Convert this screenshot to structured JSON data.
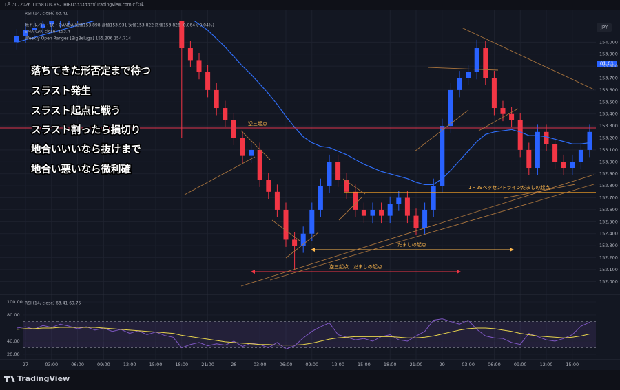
{
  "header": {
    "created": "1月 30, 2026 11:58 UTC+9、HIRO3333333がTradingView.comで作成",
    "rsi_top": "RSI (14, close)  63.41",
    "legend_symbol": "米ドル／円 · 10 · OANDA  始値153.898  高値153.931  安値153.822  終値153.826  -0.064 (-0.04%)",
    "legend_ema": "EMA (20, close)  153.4",
    "legend_wor": "Weekly Open Ranges [BigBeluga]  155.206  154.714",
    "currency": "JPY",
    "countdown": "01:01"
  },
  "overlay_text": [
    "落ちてきた形否定まで待つ",
    "スラスト発生",
    "スラスト起点に戦う",
    "スラスト割ったら損切り",
    "地合いいいなら抜けまで",
    "地合い悪いなら微利確"
  ],
  "annotations": [
    "逆三起点",
    "1・29ベッセントラインだましの起点",
    "だましの起点",
    "逆三起点　だましの起点"
  ],
  "footer": "TradingView",
  "chart_data": {
    "type": "candlestick",
    "ylim": [
      151.91,
      154.18
    ],
    "yticks": [
      {
        "value": 152.0,
        "label": "152.000"
      },
      {
        "value": 152.1,
        "label": "152.100"
      },
      {
        "value": 152.2,
        "label": "152.200"
      },
      {
        "value": 152.3,
        "label": "152.300"
      },
      {
        "value": 152.4,
        "label": "152.400"
      },
      {
        "value": 152.5,
        "label": "152.500"
      },
      {
        "value": 152.6,
        "label": "152.600"
      },
      {
        "value": 152.7,
        "label": "152.700"
      },
      {
        "value": 152.8,
        "label": "152.800"
      },
      {
        "value": 152.9,
        "label": "152.900"
      },
      {
        "value": 153.0,
        "label": "153.000"
      },
      {
        "value": 153.1,
        "label": "153.100"
      },
      {
        "value": 153.2,
        "label": "153.200"
      },
      {
        "value": 153.3,
        "label": "153.300"
      },
      {
        "value": 153.4,
        "label": "153.400"
      },
      {
        "value": 153.5,
        "label": "153.500"
      },
      {
        "value": 153.6,
        "label": "153.600"
      },
      {
        "value": 153.7,
        "label": "153.700"
      },
      {
        "value": 153.8,
        "label": "153.800"
      },
      {
        "value": 153.9,
        "label": "153.900"
      },
      {
        "value": 154.0,
        "label": "154.000"
      }
    ],
    "xticks": [
      "27",
      "03:00",
      "06:00",
      "09:00",
      "12:00",
      "15:00",
      "18:00",
      "21:00",
      "28",
      "03:00",
      "06:00",
      "09:00",
      "12:00",
      "15:00",
      "18:00",
      "21:00",
      "29",
      "03:00",
      "06:00",
      "09:00",
      "12:00",
      "15:00"
    ],
    "up_color": "#2962ff",
    "down_color": "#f23645",
    "open": [
      154.0,
      154.05,
      154.1,
      154.12,
      154.15,
      154.18,
      154.2,
      154.22,
      154.26,
      154.3,
      154.28,
      154.32,
      154.35,
      154.33,
      154.3,
      154.34,
      154.36,
      154.32,
      154.3,
      154.28,
      153.95,
      153.85,
      153.75,
      153.6,
      153.45,
      153.35,
      153.2,
      153.05,
      153.1,
      152.85,
      152.75,
      152.6,
      152.35,
      152.3,
      152.4,
      152.6,
      152.8,
      153.0,
      152.85,
      152.75,
      152.6,
      152.55,
      152.6,
      152.55,
      152.65,
      152.7,
      152.55,
      152.45,
      152.6,
      152.8,
      153.3,
      153.6,
      153.7,
      153.75,
      153.95,
      153.7,
      153.45,
      153.4,
      153.35,
      153.1,
      152.95,
      153.25,
      153.15,
      153.0,
      152.95,
      153.0,
      153.1
    ],
    "high": [
      154.11,
      154.16,
      154.18,
      154.21,
      154.24,
      154.26,
      154.28,
      154.32,
      154.36,
      154.36,
      154.38,
      154.41,
      154.41,
      154.39,
      154.4,
      154.42,
      154.42,
      154.38,
      154.36,
      154.32,
      154.01,
      153.91,
      153.81,
      153.66,
      153.51,
      153.41,
      153.26,
      153.16,
      153.16,
      152.91,
      152.81,
      152.66,
      152.41,
      152.46,
      152.66,
      152.86,
      153.06,
      153.06,
      152.91,
      152.81,
      152.66,
      152.66,
      152.66,
      152.71,
      152.76,
      152.76,
      152.61,
      152.66,
      152.86,
      153.36,
      153.66,
      153.76,
      153.81,
      154.02,
      154.01,
      153.76,
      153.51,
      153.46,
      153.41,
      153.16,
      153.31,
      153.31,
      153.21,
      153.06,
      153.06,
      153.16,
      153.31
    ],
    "low": [
      153.94,
      153.99,
      154.04,
      154.06,
      154.09,
      154.12,
      154.14,
      154.16,
      154.2,
      154.22,
      154.22,
      154.26,
      154.27,
      154.24,
      154.24,
      154.28,
      154.26,
      154.24,
      154.22,
      153.2,
      153.79,
      153.69,
      153.54,
      153.39,
      153.29,
      153.14,
      152.99,
      152.99,
      152.79,
      152.69,
      152.54,
      152.29,
      152.1,
      152.24,
      152.34,
      152.54,
      152.74,
      152.79,
      152.69,
      152.54,
      152.49,
      152.49,
      152.49,
      152.49,
      152.59,
      152.49,
      152.39,
      152.39,
      152.54,
      152.74,
      153.24,
      153.54,
      153.64,
      153.69,
      153.64,
      153.39,
      153.34,
      153.29,
      153.04,
      152.89,
      152.89,
      153.09,
      152.94,
      152.89,
      152.89,
      152.94,
      153.04
    ],
    "close": [
      154.05,
      154.1,
      154.12,
      154.15,
      154.18,
      154.2,
      154.22,
      154.26,
      154.3,
      154.28,
      154.32,
      154.35,
      154.33,
      154.3,
      154.34,
      154.36,
      154.32,
      154.3,
      154.28,
      153.95,
      153.85,
      153.75,
      153.6,
      153.45,
      153.35,
      153.2,
      153.05,
      153.1,
      152.85,
      152.75,
      152.6,
      152.35,
      152.3,
      152.4,
      152.6,
      152.8,
      153.0,
      152.85,
      152.75,
      152.6,
      152.55,
      152.6,
      152.55,
      152.65,
      152.7,
      152.55,
      152.45,
      152.6,
      152.8,
      153.3,
      153.6,
      153.7,
      153.75,
      153.95,
      153.7,
      153.45,
      153.4,
      153.35,
      153.1,
      152.95,
      153.25,
      153.15,
      153.0,
      152.95,
      153.0,
      153.1,
      153.25
    ],
    "ema": {
      "color": "#2f6df6",
      "values": [
        154.0,
        154.02,
        154.04,
        154.06,
        154.08,
        154.1,
        154.12,
        154.14,
        154.16,
        154.18,
        154.2,
        154.22,
        154.24,
        154.25,
        154.26,
        154.27,
        154.28,
        154.28,
        154.28,
        154.24,
        154.2,
        154.15,
        154.1,
        154.03,
        153.96,
        153.88,
        153.8,
        153.73,
        153.65,
        153.57,
        153.48,
        153.38,
        153.29,
        153.21,
        153.16,
        153.13,
        153.12,
        153.09,
        153.06,
        153.02,
        152.98,
        152.95,
        152.92,
        152.9,
        152.88,
        152.86,
        152.83,
        152.81,
        152.81,
        152.86,
        152.93,
        153.01,
        153.09,
        153.17,
        153.23,
        153.25,
        153.26,
        153.27,
        153.25,
        153.22,
        153.22,
        153.21,
        153.19,
        153.17,
        153.15,
        153.15,
        153.16
      ]
    },
    "rsi": {
      "title": "RSI (14, close)  63.41  69.75",
      "ylim": [
        10.5,
        104.2
      ],
      "yticks": [
        {
          "value": 20,
          "label": "20.00"
        },
        {
          "value": 40,
          "label": "40.00"
        },
        {
          "value": 80,
          "label": "80.00"
        },
        {
          "value": 100,
          "label": "100.00"
        }
      ],
      "band": [
        30,
        70
      ],
      "color": "#7e57c2",
      "ma_color": "#e8d44d",
      "values": [
        60,
        62,
        58,
        64,
        61,
        66,
        63,
        59,
        62,
        57,
        60,
        55,
        58,
        52,
        56,
        50,
        54,
        49,
        46,
        30,
        35,
        38,
        33,
        36,
        34,
        40,
        32,
        37,
        35,
        30,
        38,
        28,
        33,
        45,
        55,
        62,
        68,
        50,
        46,
        42,
        44,
        40,
        47,
        50,
        42,
        40,
        48,
        55,
        72,
        74,
        70,
        66,
        72,
        58,
        48,
        45,
        44,
        38,
        35,
        52,
        47,
        42,
        40,
        44,
        50,
        63,
        69
      ],
      "ma_values": [
        58,
        59,
        59,
        60,
        60,
        61,
        61,
        61,
        61,
        61,
        60,
        59,
        58,
        57,
        56,
        55,
        54,
        53,
        52,
        49,
        47,
        45,
        43,
        41,
        39,
        38,
        37,
        36,
        35,
        35,
        34,
        34,
        34,
        35,
        37,
        40,
        43,
        45,
        46,
        47,
        47,
        47,
        47,
        47,
        46,
        45,
        45,
        46,
        48,
        51,
        54,
        57,
        59,
        60,
        60,
        59,
        57,
        55,
        52,
        50,
        48,
        47,
        46,
        45,
        46,
        48,
        51
      ]
    }
  }
}
